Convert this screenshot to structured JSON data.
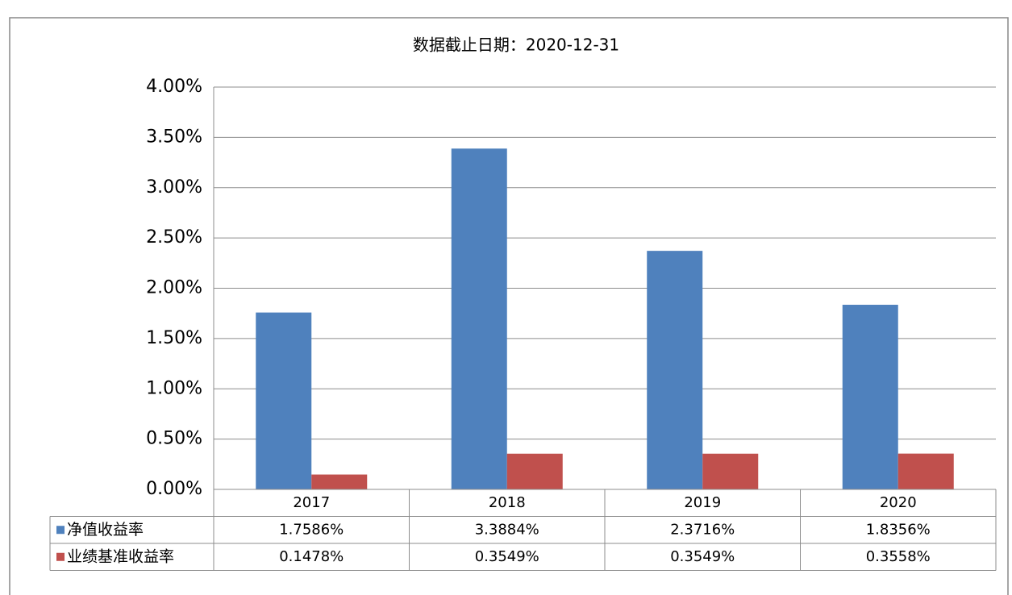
{
  "chart_data": {
    "type": "bar",
    "subtitle": "数据截止日期：2020-12-31",
    "categories": [
      "2017",
      "2018",
      "2019",
      "2020"
    ],
    "series": [
      {
        "name": "净值收益率",
        "color": "#4f81bd",
        "values": [
          1.7586,
          3.3884,
          2.3716,
          1.8356
        ],
        "value_labels": [
          "1.7586%",
          "3.3884%",
          "2.3716%",
          "1.8356%"
        ]
      },
      {
        "name": "业绩基准收益率",
        "color": "#c0504d",
        "values": [
          0.1478,
          0.3549,
          0.3549,
          0.3558
        ],
        "value_labels": [
          "0.1478%",
          "0.3549%",
          "0.3549%",
          "0.3558%"
        ]
      }
    ],
    "ylim": [
      0,
      4
    ],
    "yticks": [
      {
        "value": 0,
        "label": "0.00%"
      },
      {
        "value": 0.5,
        "label": "0.50%"
      },
      {
        "value": 1,
        "label": "1.00%"
      },
      {
        "value": 1.5,
        "label": "1.50%"
      },
      {
        "value": 2,
        "label": "2.00%"
      },
      {
        "value": 2.5,
        "label": "2.50%"
      },
      {
        "value": 3,
        "label": "3.00%"
      },
      {
        "value": 3.5,
        "label": "3.50%"
      },
      {
        "value": 4,
        "label": "4.00%"
      }
    ],
    "grid": true
  }
}
